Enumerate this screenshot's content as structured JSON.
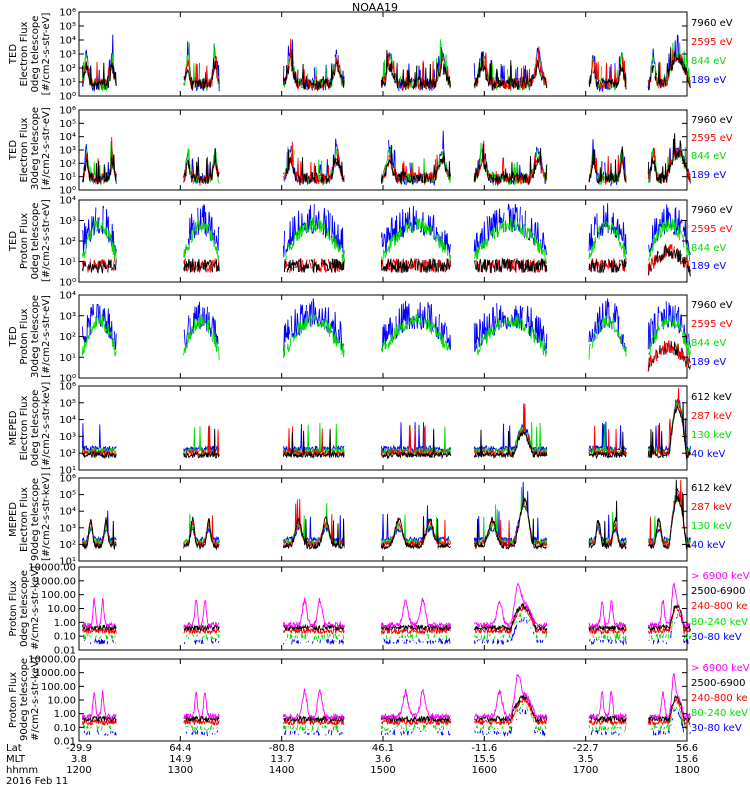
{
  "title": "NOAA19",
  "chart_data": {
    "type": "line",
    "panels": [
      {
        "id": "ted-e-0deg",
        "ylabel": [
          "TED",
          "Electron Flux",
          "0deg telescope",
          "[#/cm2-s-str-eV]"
        ],
        "yticks": [
          "10⁰",
          "10¹",
          "10²",
          "10³",
          "10⁴",
          "10⁵",
          "10⁶"
        ],
        "ylog": [
          0,
          6
        ],
        "legend": [
          {
            "text": "7960 eV",
            "color": "#000000"
          },
          {
            "text": "2595 eV",
            "color": "#ff0000"
          },
          {
            "text": "844 eV",
            "color": "#00dd00"
          },
          {
            "text": "189 eV",
            "color": "#0000ff"
          }
        ]
      },
      {
        "id": "ted-e-30deg",
        "ylabel": [
          "TED",
          "Electron Flux",
          "30deg telescope",
          "[#/cm2-s-str-eV]"
        ],
        "yticks": [
          "10⁰",
          "10¹",
          "10²",
          "10³",
          "10⁴",
          "10⁵",
          "10⁶"
        ],
        "ylog": [
          0,
          6
        ],
        "legend": [
          {
            "text": "7960 eV",
            "color": "#000000"
          },
          {
            "text": "2595 eV",
            "color": "#ff0000"
          },
          {
            "text": "844 eV",
            "color": "#00dd00"
          },
          {
            "text": "189 eV",
            "color": "#0000ff"
          }
        ]
      },
      {
        "id": "ted-p-0deg",
        "ylabel": [
          "TED",
          "Proton Flux",
          "0deg telescope",
          "[#/cm2-s-str-eV]"
        ],
        "yticks": [
          "10⁰",
          "10¹",
          "10²",
          "10³",
          "10⁴"
        ],
        "ylog": [
          0,
          4
        ],
        "legend": [
          {
            "text": "7960 eV",
            "color": "#000000"
          },
          {
            "text": "2595 eV",
            "color": "#ff0000"
          },
          {
            "text": "844 eV",
            "color": "#00dd00"
          },
          {
            "text": "189 eV",
            "color": "#0000ff"
          }
        ]
      },
      {
        "id": "ted-p-30deg",
        "ylabel": [
          "TED",
          "Proton Flux",
          "30deg telescope",
          "[#/cm2-s-str-eV]"
        ],
        "yticks": [
          "10⁰",
          "10¹",
          "10²",
          "10³",
          "10⁴"
        ],
        "ylog": [
          0,
          4
        ],
        "legend": [
          {
            "text": "7960 eV",
            "color": "#000000"
          },
          {
            "text": "2595 eV",
            "color": "#ff0000"
          },
          {
            "text": "844 eV",
            "color": "#00dd00"
          },
          {
            "text": "189 eV",
            "color": "#0000ff"
          }
        ]
      },
      {
        "id": "meped-e-0deg",
        "ylabel": [
          "MEPED",
          "Electron Flux",
          "0deg telescope",
          "[#/cm2-s-str-keV]"
        ],
        "yticks": [
          "10¹",
          "10²",
          "10³",
          "10⁴",
          "10⁵",
          "10⁶"
        ],
        "ylog": [
          1,
          6
        ],
        "legend": [
          {
            "text": "612 keV",
            "color": "#000000"
          },
          {
            "text": "287 keV",
            "color": "#ff0000"
          },
          {
            "text": "130 keV",
            "color": "#00dd00"
          },
          {
            "text": "40 keV",
            "color": "#0000ff"
          }
        ]
      },
      {
        "id": "meped-e-90deg",
        "ylabel": [
          "MEPED",
          "Electron Flux",
          "90deg telescope",
          "[#/cm2-s-str-keV]"
        ],
        "yticks": [
          "10¹",
          "10²",
          "10³",
          "10⁴",
          "10⁵",
          "10⁶"
        ],
        "ylog": [
          1,
          6
        ],
        "legend": [
          {
            "text": "612 keV",
            "color": "#000000"
          },
          {
            "text": "287 keV",
            "color": "#ff0000"
          },
          {
            "text": "130 keV",
            "color": "#00dd00"
          },
          {
            "text": "40 keV",
            "color": "#0000ff"
          }
        ]
      },
      {
        "id": "meped-p-0deg",
        "ylabel": [
          "Proton Flux",
          "0deg telescope",
          "#/cm2-s-str-keV]"
        ],
        "yticks": [
          "0.01",
          "0.10",
          "1.00",
          "10.00",
          "100.00",
          "1000.00",
          "10000.00"
        ],
        "ylog": [
          -2,
          4
        ],
        "legend": [
          {
            "text": "> 6900 keV",
            "color": "#ff00ff"
          },
          {
            "text": "2500-6900",
            "color": "#000000"
          },
          {
            "text": "240-800 ke",
            "color": "#ff0000"
          },
          {
            "text": "80-240 keV",
            "color": "#00dd00"
          },
          {
            "text": "30-80 keV",
            "color": "#0000ff"
          }
        ]
      },
      {
        "id": "meped-p-90deg",
        "ylabel": [
          "Proton Flux",
          "90deg telescope",
          "#/cm2-s-str-keV]"
        ],
        "yticks": [
          "0.01",
          "0.10",
          "1.00",
          "10.00",
          "100.00",
          "1000.00",
          "10000.00"
        ],
        "ylog": [
          -2,
          4
        ],
        "legend": [
          {
            "text": "> 6900 keV",
            "color": "#ff00ff"
          },
          {
            "text": "2500-6900",
            "color": "#000000"
          },
          {
            "text": "240-800 ke",
            "color": "#ff0000"
          },
          {
            "text": "80-240 keV",
            "color": "#00dd00"
          },
          {
            "text": "30-80 keV",
            "color": "#0000ff"
          }
        ]
      }
    ],
    "x_axis": {
      "time_ticks": [
        "1200",
        "1300",
        "1400",
        "1500",
        "1600",
        "1700",
        "1800"
      ],
      "rows": [
        {
          "label": "Lat",
          "values": [
            "-29.9",
            "64.4",
            "-80.8",
            "46.1",
            "-11.6",
            "-22.7",
            "56.6"
          ]
        },
        {
          "label": "MLT",
          "values": [
            "3.8",
            "14.9",
            "13.7",
            "3.6",
            "15.5",
            "3.5",
            "15.6"
          ]
        },
        {
          "label": "hhmm",
          "values": [
            "1200",
            "1300",
            "1400",
            "1500",
            "1600",
            "1700",
            "1800"
          ]
        }
      ],
      "date": "2016 Feb 11"
    },
    "passes_hhmm": [
      [
        "1202",
        "1222"
      ],
      [
        "1302",
        "1323"
      ],
      [
        "1401",
        "1437"
      ],
      [
        "1459",
        "1540"
      ],
      [
        "1554",
        "1637"
      ],
      [
        "1702",
        "1724"
      ],
      [
        "1737",
        "1802"
      ]
    ],
    "colors": {
      "black": "#000000",
      "red": "#ff0000",
      "green": "#00dd00",
      "blue": "#0000ff",
      "magenta": "#ff00ff"
    }
  }
}
